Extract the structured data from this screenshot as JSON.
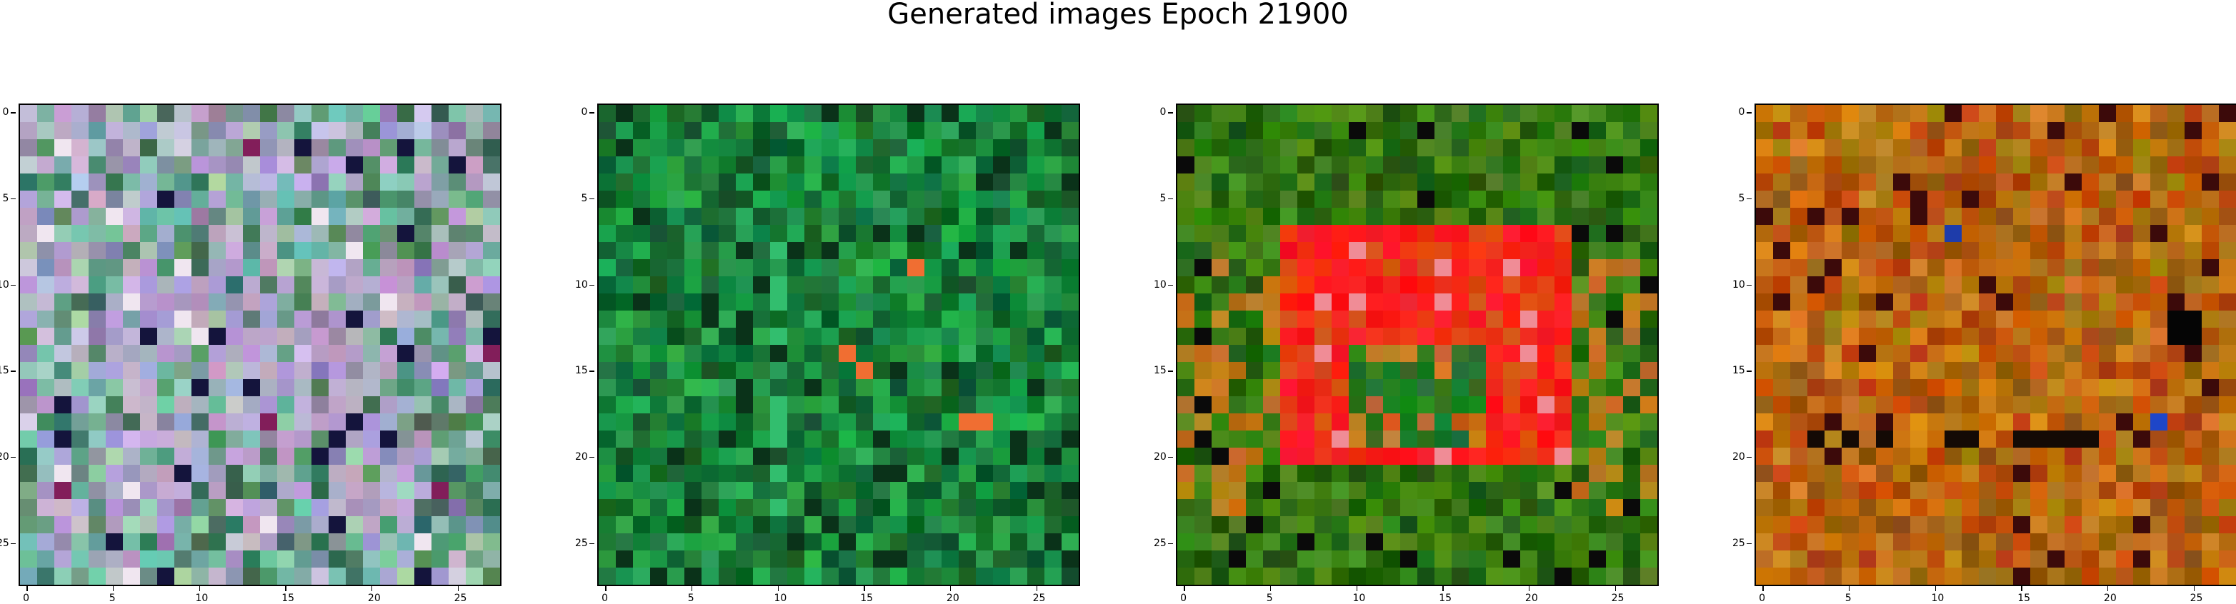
{
  "figure": {
    "title": "Generated images Epoch 21900"
  },
  "axes": {
    "x_ticks": [
      "0",
      "5",
      "10",
      "15",
      "20",
      "25"
    ],
    "y_ticks": [
      "0",
      "5",
      "10",
      "15",
      "20",
      "25"
    ]
  },
  "panels": [
    {
      "palette": "muted-multicolor"
    },
    {
      "palette": "green"
    },
    {
      "palette": "green-with-red-square"
    },
    {
      "palette": "orange-brown"
    }
  ]
}
